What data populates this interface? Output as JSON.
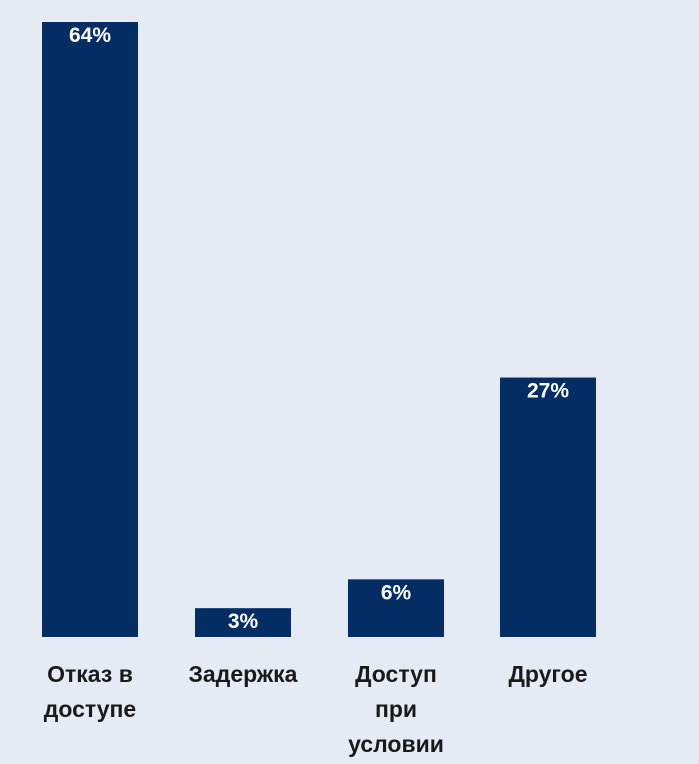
{
  "chart_data": {
    "type": "bar",
    "categories": [
      "Отказ в доступе",
      "Задержка",
      "Доступ при условии",
      "Другое"
    ],
    "category_lines": [
      [
        "Отказ в",
        "доступе"
      ],
      [
        "Задержка"
      ],
      [
        "Доступ",
        "при",
        "условии"
      ],
      [
        "Другое"
      ]
    ],
    "values": [
      64,
      3,
      6,
      27
    ],
    "value_labels": [
      "64%",
      "3%",
      "6%",
      "27%"
    ],
    "ylim": [
      0,
      64
    ],
    "grid": false,
    "colors": {
      "bar": "#032d63",
      "background": "#e4ebf4",
      "value_text": "#ffffff",
      "category_text": "#1a1a1a"
    }
  }
}
